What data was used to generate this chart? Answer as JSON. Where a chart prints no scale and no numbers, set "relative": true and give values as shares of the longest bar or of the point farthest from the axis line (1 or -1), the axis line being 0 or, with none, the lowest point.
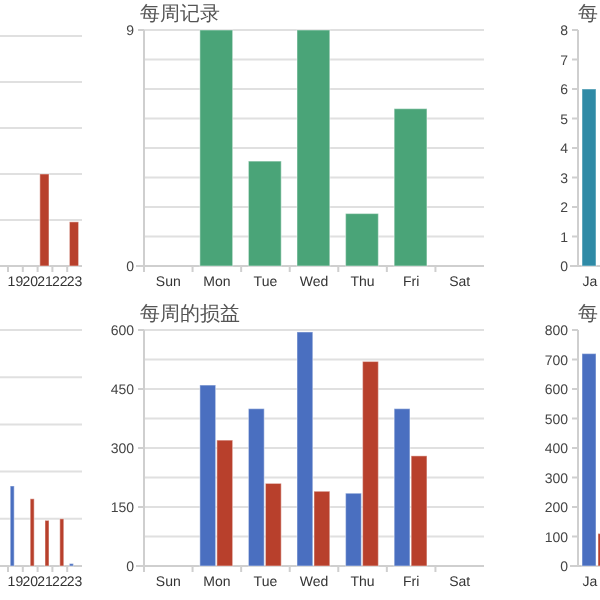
{
  "chart_data": [
    {
      "type": "bar",
      "relative": true,
      "categories": [
        "19",
        "20",
        "21",
        "22",
        "23"
      ],
      "ref_lines": [
        {
          "axis": "y",
          "value": 0.5,
          "color": "#e0e0e0"
        },
        {
          "axis": "y",
          "value": 1,
          "color": "#e0e0e0"
        },
        {
          "axis": "y",
          "value": 1.5,
          "color": "#e0e0e0"
        },
        {
          "axis": "y",
          "value": 2,
          "color": "#e0e0e0"
        },
        {
          "axis": "y",
          "value": 2.5,
          "color": "#e0e0e0"
        }
      ],
      "series": [
        {
          "color": "#b8402c",
          "values": [
            null,
            null,
            1,
            null,
            0.48
          ]
        }
      ]
    },
    {
      "type": "bar",
      "title": "每周记录",
      "grid": "y",
      "categories": [
        "Sun",
        "Mon",
        "Tue",
        "Wed",
        "Thu",
        "Fri",
        "Sat"
      ],
      "ylim": [
        0,
        9
      ],
      "yticks": [
        0,
        {
          "value": 1.125,
          "label": null
        },
        {
          "value": 2.25,
          "label": null
        },
        {
          "value": 3.375,
          "label": null
        },
        {
          "value": 4.5,
          "label": null
        },
        {
          "value": 5.625,
          "label": null
        },
        {
          "value": 6.75,
          "label": null
        },
        {
          "value": 7.875,
          "label": null
        },
        9
      ],
      "series": [
        {
          "color": "#4aa478",
          "values": [
            null,
            9,
            4,
            9,
            2,
            6,
            null
          ]
        }
      ]
    },
    {
      "type": "bar",
      "title": "每",
      "categories": [
        "Ja"
      ],
      "ylim": [
        0,
        8
      ],
      "yticks": [
        0,
        1,
        2,
        3,
        4,
        5,
        6,
        7,
        8
      ],
      "series": [
        {
          "color": "#2f8aa6",
          "values": [
            6
          ]
        }
      ]
    },
    {
      "type": "bar",
      "relative": true,
      "categories": [
        "19",
        "20",
        "21",
        "22",
        "23"
      ],
      "ref_lines": [
        {
          "axis": "y",
          "value": 0.59,
          "color": "#e0e0e0"
        },
        {
          "axis": "y",
          "value": 1.18,
          "color": "#e0e0e0"
        },
        {
          "axis": "y",
          "value": 1.77,
          "color": "#e0e0e0"
        },
        {
          "axis": "y",
          "value": 2.36,
          "color": "#e0e0e0"
        },
        {
          "axis": "y",
          "value": 2.95,
          "color": "#e0e0e0"
        }
      ],
      "series": [
        {
          "color": "#4a6fc0",
          "values": [
            1,
            null,
            null,
            null,
            0.03
          ]
        },
        {
          "color": "#b8402c",
          "values": [
            null,
            0.84,
            0.57,
            0.59,
            null
          ]
        }
      ]
    },
    {
      "type": "bar",
      "title": "每周的损益",
      "grid": "y",
      "categories": [
        "Sun",
        "Mon",
        "Tue",
        "Wed",
        "Thu",
        "Fri",
        "Sat"
      ],
      "ylim": [
        0,
        600
      ],
      "yticks": [
        0,
        {
          "value": 75,
          "label": null
        },
        150,
        {
          "value": 225,
          "label": null
        },
        300,
        {
          "value": 375,
          "label": null
        },
        450,
        {
          "value": 525,
          "label": null
        },
        600
      ],
      "series": [
        {
          "color": "#4a6fc0",
          "values": [
            null,
            460,
            400,
            595,
            185,
            400,
            null
          ]
        },
        {
          "color": "#b8402c",
          "values": [
            null,
            320,
            210,
            190,
            520,
            280,
            null
          ]
        }
      ]
    },
    {
      "type": "bar",
      "title": "每",
      "categories": [
        "Ja"
      ],
      "ylim": [
        0,
        800
      ],
      "yticks": [
        0,
        100,
        200,
        300,
        400,
        500,
        600,
        700,
        800
      ],
      "series": [
        {
          "color": "#4a6fc0",
          "values": [
            720
          ]
        },
        {
          "color": "#b8402c",
          "values": [
            110
          ]
        }
      ]
    }
  ]
}
